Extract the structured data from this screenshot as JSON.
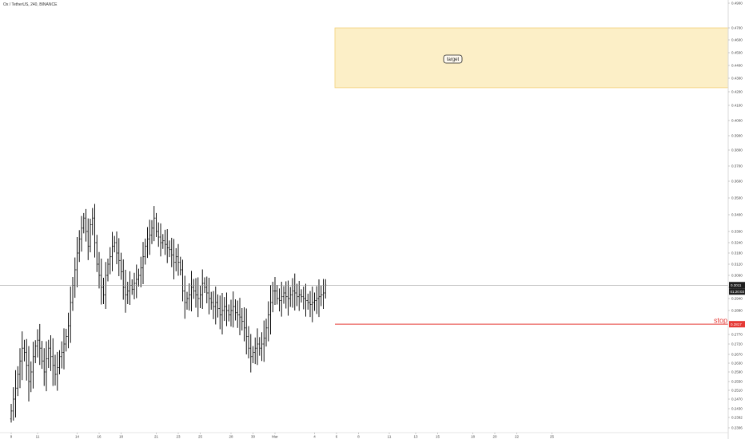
{
  "header": {
    "title": "Ox / TetherUS, 240, BINANCE"
  },
  "colors": {
    "bar": "#111111",
    "stop": "#e53935",
    "zone_fill": "#fcefc7",
    "zone_stroke": "#f3cf77",
    "price_line": "#8a8a8a"
  },
  "chart_data": {
    "type": "ohlc",
    "title": "Ox / TetherUS, 240, BINANCE",
    "xlabel": "",
    "ylabel": "",
    "x_ticks": [
      "9",
      "11",
      "14",
      "16",
      "18",
      "21",
      "23",
      "25",
      "28",
      "30",
      "Mar",
      "4",
      "6",
      "8",
      "11",
      "13",
      "15",
      "18",
      "20",
      "22",
      "25"
    ],
    "x_tick_index": [
      0,
      12,
      30,
      40,
      50,
      66,
      76,
      86,
      100,
      110,
      120,
      138,
      148,
      158,
      172,
      184,
      194,
      210,
      220,
      230,
      246
    ],
    "ylim": [
      0.2306,
      0.49
    ],
    "y_ticks": [
      0.49,
      0.47,
      0.46,
      0.45,
      0.44,
      0.43,
      0.42,
      0.41,
      0.4,
      0.39,
      0.38,
      0.37,
      0.36,
      0.35,
      0.34,
      0.33,
      0.324,
      0.318,
      0.312,
      0.306,
      0.3,
      0.294,
      0.288,
      0.277,
      0.272,
      0.267,
      0.263,
      0.259,
      0.255,
      0.251,
      0.247,
      0.243,
      0.2392,
      0.2306
    ],
    "y_tick_labels": [
      "0.4900",
      "0.4700",
      "0.4600",
      "0.4500",
      "0.4400",
      "0.4300",
      "0.4200",
      "0.4100",
      "0.4000",
      "0.3900",
      "0.3800",
      "0.3700",
      "0.3600",
      "0.3500",
      "0.3400",
      "0.3300",
      "0.3240",
      "0.3180",
      "0.3120",
      "0.3060",
      "0.3000",
      "0.2940",
      "0.2880",
      "0.2770",
      "0.2720",
      "0.2670",
      "0.2630",
      "0.2590",
      "0.2550",
      "0.2510",
      "0.2470",
      "0.2430",
      "0.2392",
      "0.2306"
    ],
    "current_price": {
      "value": 0.3011,
      "label": "0.3011",
      "countdown": "01:20:03"
    },
    "stop": {
      "value": 0.2817,
      "label": "0.2817",
      "text": "stop",
      "start_index": 148
    },
    "target_zone": {
      "top": 0.47,
      "bottom": 0.423,
      "start_index": 148,
      "text": "target"
    },
    "closes": [
      0.242,
      0.247,
      0.252,
      0.258,
      0.264,
      0.27,
      0.268,
      0.262,
      0.255,
      0.259,
      0.266,
      0.271,
      0.274,
      0.27,
      0.264,
      0.259,
      0.265,
      0.27,
      0.266,
      0.262,
      0.258,
      0.261,
      0.266,
      0.268,
      0.272,
      0.276,
      0.281,
      0.292,
      0.301,
      0.309,
      0.318,
      0.326,
      0.332,
      0.338,
      0.33,
      0.322,
      0.334,
      0.338,
      0.324,
      0.312,
      0.306,
      0.3,
      0.296,
      0.306,
      0.312,
      0.316,
      0.322,
      0.324,
      0.318,
      0.314,
      0.308,
      0.3,
      0.296,
      0.298,
      0.301,
      0.299,
      0.302,
      0.304,
      0.306,
      0.31,
      0.316,
      0.322,
      0.326,
      0.328,
      0.332,
      0.338,
      0.33,
      0.327,
      0.324,
      0.325,
      0.323,
      0.321,
      0.32,
      0.317,
      0.313,
      0.316,
      0.313,
      0.309,
      0.298,
      0.292,
      0.294,
      0.296,
      0.3,
      0.298,
      0.296,
      0.294,
      0.296,
      0.302,
      0.3,
      0.297,
      0.294,
      0.292,
      0.29,
      0.292,
      0.289,
      0.286,
      0.288,
      0.29,
      0.288,
      0.286,
      0.288,
      0.29,
      0.287,
      0.286,
      0.285,
      0.283,
      0.28,
      0.276,
      0.27,
      0.266,
      0.268,
      0.27,
      0.272,
      0.27,
      0.272,
      0.275,
      0.28,
      0.286,
      0.292,
      0.298,
      0.298,
      0.294,
      0.293,
      0.295,
      0.297,
      0.295,
      0.294,
      0.296,
      0.298,
      0.297,
      0.295,
      0.296,
      0.295,
      0.294,
      0.293,
      0.292,
      0.291,
      0.292,
      0.293,
      0.294,
      0.295,
      0.296,
      0.297,
      0.3011
    ]
  },
  "annotations": {
    "target_label": "target",
    "stop_label": "stop"
  }
}
